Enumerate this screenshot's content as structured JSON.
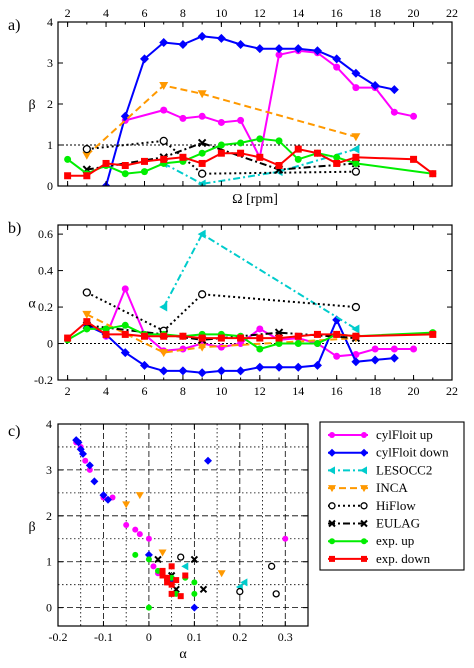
{
  "chart_data": [
    {
      "panel": "a)",
      "type": "line",
      "ylabel": "β",
      "xlabel": "Ω [rpm]",
      "xlim": [
        1.5,
        22
      ],
      "ylim": [
        0,
        4
      ],
      "xticks_top": [
        2,
        4,
        6,
        8,
        10,
        12,
        14,
        16,
        18,
        20,
        22
      ],
      "yticks": [
        0,
        1,
        2,
        3,
        4
      ],
      "reference_line": 1,
      "series": [
        {
          "name": "cylFloit up",
          "color": "#ff00ff",
          "style": "solid",
          "marker": "circle",
          "x": [
            5,
            7,
            8,
            9,
            10,
            11,
            12,
            13,
            14,
            15,
            16,
            17,
            18,
            19,
            20
          ],
          "y": [
            1.6,
            1.85,
            1.65,
            1.7,
            1.55,
            1.6,
            0.7,
            3.2,
            3.3,
            3.25,
            2.9,
            2.4,
            2.4,
            1.8,
            1.7
          ]
        },
        {
          "name": "cylFloit down",
          "color": "#0000ff",
          "style": "solid",
          "marker": "diamond",
          "x": [
            4,
            5,
            6,
            7,
            8,
            9,
            10,
            11,
            12,
            13,
            14,
            15,
            16,
            17,
            18,
            19
          ],
          "y": [
            0.0,
            1.7,
            3.1,
            3.5,
            3.45,
            3.65,
            3.6,
            3.45,
            3.35,
            3.35,
            3.35,
            3.3,
            3.1,
            2.75,
            2.45,
            2.35
          ]
        },
        {
          "name": "LESOCC2",
          "color": "#00cccc",
          "style": "dashdot",
          "marker": "triangle-left",
          "x": [
            7,
            9,
            13,
            17
          ],
          "y": [
            0.55,
            0.05,
            0.35,
            0.9
          ]
        },
        {
          "name": "INCA",
          "color": "#ff9900",
          "style": "dashed",
          "marker": "triangle-down",
          "x": [
            3,
            7,
            9,
            17
          ],
          "y": [
            0.75,
            2.45,
            2.25,
            1.2
          ]
        },
        {
          "name": "HiFlow",
          "color": "#000000",
          "style": "dotted",
          "marker": "open-circle",
          "x": [
            3,
            7,
            9,
            17
          ],
          "y": [
            0.9,
            1.1,
            0.3,
            0.35
          ]
        },
        {
          "name": "EULAG",
          "color": "#000000",
          "style": "dashdot",
          "marker": "x",
          "x": [
            3,
            7,
            9,
            13,
            17
          ],
          "y": [
            0.4,
            0.7,
            1.05,
            0.4,
            0.55
          ]
        },
        {
          "name": "exp. up",
          "color": "#00ee00",
          "style": "solid",
          "marker": "circle",
          "x": [
            2,
            3,
            4,
            5,
            6,
            7,
            8,
            9,
            10,
            11,
            12,
            13,
            14,
            15,
            16,
            17,
            21
          ],
          "y": [
            0.65,
            0.3,
            0.5,
            0.3,
            0.35,
            0.55,
            0.6,
            0.8,
            1.0,
            1.05,
            1.15,
            1.1,
            0.65,
            0.8,
            0.7,
            0.55,
            0.3
          ]
        },
        {
          "name": "exp. down",
          "color": "#ff0000",
          "style": "solid",
          "marker": "square",
          "x": [
            2,
            3,
            4,
            5,
            6,
            7,
            8,
            9,
            10,
            11,
            12,
            13,
            14,
            15,
            16,
            17,
            20,
            21
          ],
          "y": [
            0.25,
            0.25,
            0.55,
            0.5,
            0.6,
            0.65,
            0.7,
            0.55,
            0.8,
            0.8,
            0.7,
            0.5,
            0.9,
            0.8,
            0.55,
            0.7,
            0.65,
            0.3
          ]
        }
      ]
    },
    {
      "panel": "b)",
      "type": "line",
      "ylabel": "α",
      "xlim": [
        1.5,
        22
      ],
      "ylim": [
        -0.2,
        0.65
      ],
      "xticks": [
        2,
        4,
        6,
        8,
        10,
        12,
        14,
        16,
        18,
        20,
        22
      ],
      "yticks": [
        -0.2,
        0,
        0.2,
        0.4,
        0.6
      ],
      "reference_line": 0,
      "series": [
        {
          "name": "cylFloit up",
          "color": "#ff00ff",
          "x": [
            4,
            5,
            6,
            7,
            8,
            9,
            10,
            11,
            12,
            13,
            14,
            15,
            16,
            17,
            18,
            19,
            20
          ],
          "y": [
            0.04,
            0.3,
            0.05,
            -0.04,
            -0.03,
            0.0,
            -0.02,
            0.0,
            0.08,
            0.02,
            0.03,
            0.0,
            -0.07,
            -0.06,
            -0.03,
            -0.03,
            -0.03
          ]
        },
        {
          "name": "cylFloit down",
          "color": "#0000ff",
          "x": [
            3,
            4,
            5,
            6,
            7,
            8,
            9,
            10,
            11,
            12,
            13,
            14,
            15,
            16,
            17,
            18,
            19
          ],
          "y": [
            0.1,
            0.05,
            -0.05,
            -0.12,
            -0.15,
            -0.15,
            -0.16,
            -0.15,
            -0.15,
            -0.13,
            -0.13,
            -0.13,
            -0.12,
            0.13,
            -0.1,
            -0.09,
            -0.08
          ]
        },
        {
          "name": "LESOCC2",
          "color": "#00cccc",
          "x": [
            7,
            9,
            17
          ],
          "y": [
            0.2,
            0.6,
            0.08
          ]
        },
        {
          "name": "INCA",
          "color": "#ff9900",
          "x": [
            3,
            7,
            9,
            17
          ],
          "y": [
            0.16,
            -0.05,
            -0.02,
            0.03
          ]
        },
        {
          "name": "HiFlow",
          "color": "#000000",
          "x": [
            3,
            7,
            9,
            17
          ],
          "y": [
            0.28,
            0.07,
            0.27,
            0.2
          ]
        },
        {
          "name": "EULAG",
          "color": "#000000",
          "x": [
            3,
            7,
            9,
            13,
            17
          ],
          "y": [
            0.1,
            0.05,
            0.02,
            0.06,
            0.03
          ]
        },
        {
          "name": "exp. up",
          "color": "#00ee00",
          "x": [
            2,
            3,
            4,
            5,
            6,
            7,
            8,
            9,
            10,
            11,
            12,
            13,
            14,
            15,
            16,
            17,
            21
          ],
          "y": [
            0.02,
            0.08,
            0.08,
            0.1,
            0.05,
            0.05,
            0.04,
            0.05,
            0.05,
            0.04,
            -0.03,
            0.0,
            0.0,
            0.0,
            0.05,
            0.04,
            0.06
          ]
        },
        {
          "name": "exp. down",
          "color": "#ff0000",
          "x": [
            2,
            3,
            4,
            5,
            6,
            7,
            8,
            9,
            10,
            11,
            12,
            13,
            14,
            15,
            16,
            17,
            21
          ],
          "y": [
            0.03,
            0.12,
            0.05,
            0.05,
            0.04,
            0.04,
            0.04,
            0.03,
            0.03,
            0.03,
            0.03,
            0.03,
            0.04,
            0.05,
            0.05,
            0.04,
            0.05
          ]
        }
      ]
    },
    {
      "panel": "c)",
      "type": "scatter",
      "xlabel": "α",
      "ylabel": "β",
      "xlim": [
        -0.2,
        0.35
      ],
      "ylim": [
        -0.4,
        4
      ],
      "xticks": [
        -0.2,
        -0.1,
        0,
        0.1,
        0.2,
        0.3
      ],
      "yticks": [
        0,
        1,
        2,
        3,
        4
      ],
      "grid": "dashed and dotted",
      "legend_position": "right",
      "series": [
        {
          "name": "cylFloit up",
          "color": "#ff00ff",
          "marker": "circle",
          "line": "solid",
          "x": [
            -0.16,
            -0.15,
            -0.14,
            -0.13,
            -0.1,
            -0.08,
            -0.05,
            -0.03,
            -0.02,
            0.0,
            0.01,
            0.02,
            0.03,
            0.05,
            0.3
          ],
          "y": [
            3.6,
            3.5,
            3.2,
            3.0,
            2.4,
            2.4,
            1.8,
            1.7,
            1.6,
            1.5,
            0.9,
            0.75,
            0.7,
            0.5,
            1.5
          ]
        },
        {
          "name": "cylFloit down",
          "color": "#0000ff",
          "marker": "diamond",
          "line": "solid",
          "x": [
            -0.16,
            -0.155,
            -0.15,
            -0.145,
            -0.13,
            -0.12,
            -0.1,
            -0.09,
            0.0,
            0.05,
            0.1,
            0.13
          ],
          "y": [
            3.65,
            3.6,
            3.45,
            3.35,
            3.1,
            2.75,
            2.45,
            2.35,
            1.15,
            0.55,
            0.0,
            3.2
          ]
        },
        {
          "name": "LESOCC2",
          "color": "#00cccc",
          "marker": "triangle-left",
          "line": "dashdot",
          "x": [
            0.08,
            0.2,
            0.21
          ],
          "y": [
            0.9,
            0.45,
            0.55
          ]
        },
        {
          "name": "INCA",
          "color": "#ff9900",
          "marker": "triangle-down",
          "line": "dashed",
          "x": [
            -0.05,
            -0.02,
            0.03,
            0.16
          ],
          "y": [
            2.25,
            2.45,
            1.2,
            0.75
          ]
        },
        {
          "name": "HiFlow",
          "color": "#000000",
          "marker": "open-circle",
          "line": "dotted",
          "x": [
            0.07,
            0.2,
            0.27,
            0.28
          ],
          "y": [
            1.1,
            0.35,
            0.9,
            0.3
          ]
        },
        {
          "name": "EULAG",
          "color": "#000000",
          "marker": "x",
          "line": "dashdot",
          "x": [
            0.02,
            0.05,
            0.06,
            0.1,
            0.12
          ],
          "y": [
            1.05,
            0.7,
            0.4,
            1.05,
            0.4
          ]
        },
        {
          "name": "exp. up",
          "color": "#00ee00",
          "marker": "circle",
          "line": "solid",
          "x": [
            -0.03,
            0.0,
            0.02,
            0.04,
            0.05,
            0.05,
            0.06,
            0.08,
            0.1,
            0.1,
            0.0
          ],
          "y": [
            1.15,
            1.05,
            0.8,
            0.6,
            0.65,
            0.5,
            0.3,
            0.65,
            0.3,
            0.55,
            0.0
          ]
        },
        {
          "name": "exp. down",
          "color": "#ff0000",
          "marker": "square",
          "line": "solid",
          "x": [
            0.03,
            0.03,
            0.04,
            0.04,
            0.05,
            0.05,
            0.05,
            0.06,
            0.07,
            0.08
          ],
          "y": [
            0.8,
            0.7,
            0.65,
            0.55,
            0.5,
            0.9,
            0.3,
            0.6,
            0.25,
            0.7
          ]
        }
      ]
    }
  ]
}
